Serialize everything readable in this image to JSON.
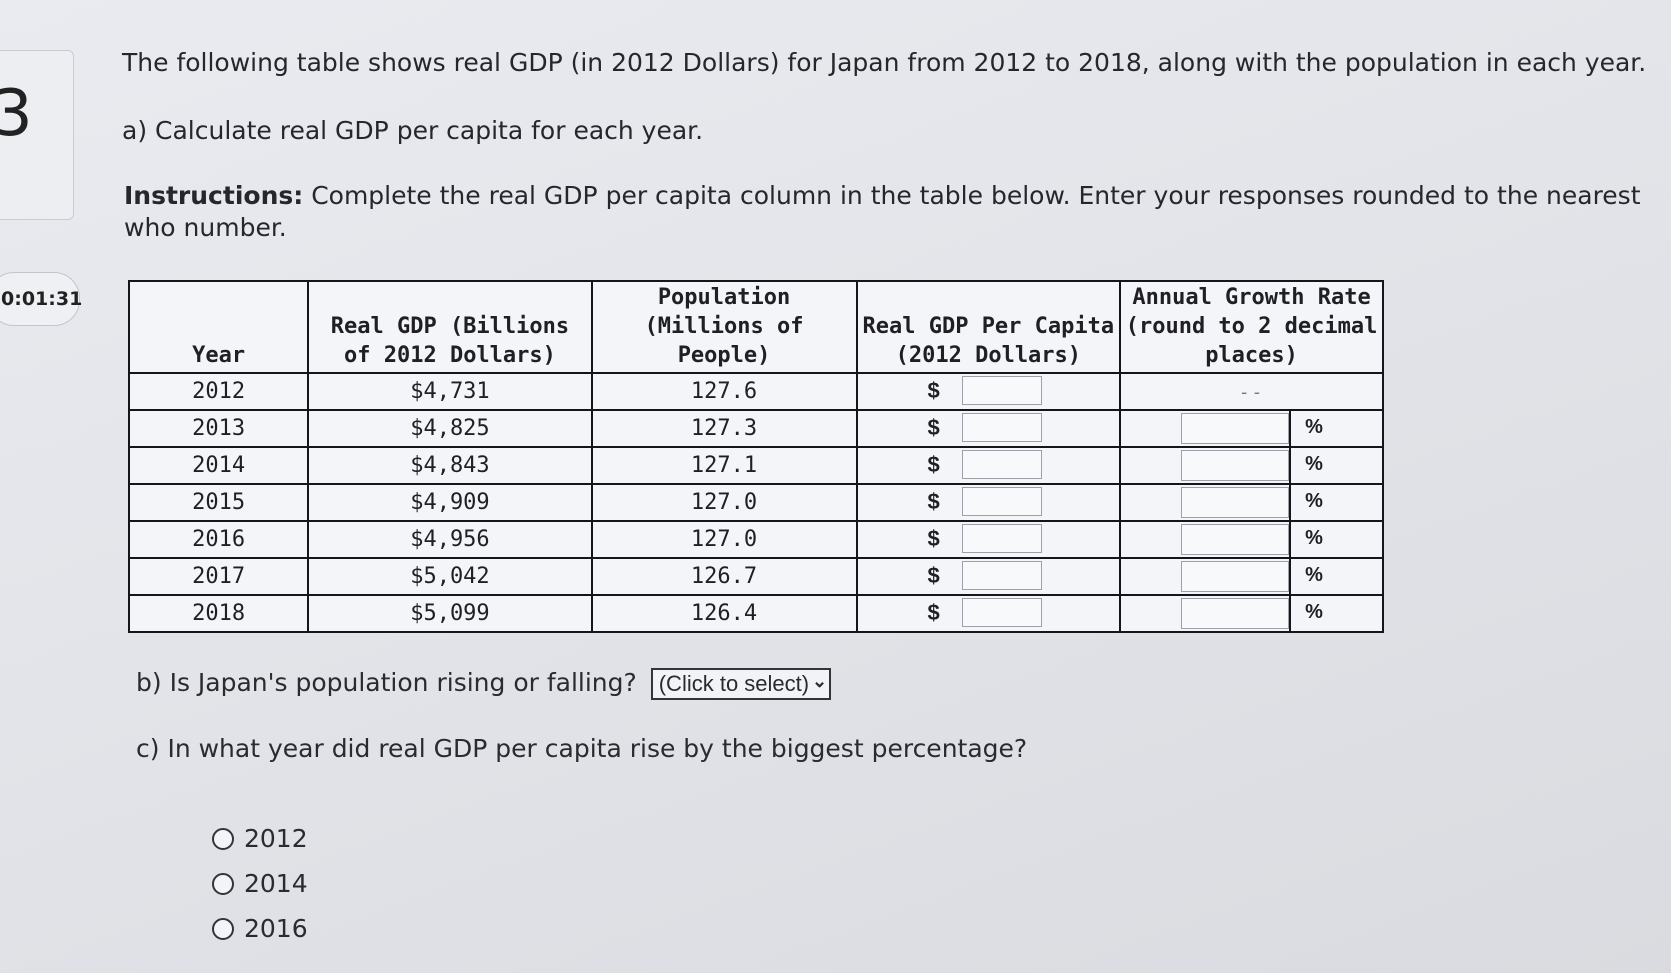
{
  "question_number": "3",
  "timer": "0:01:31",
  "prompt": "The following table shows real GDP (in 2012 Dollars) for Japan from 2012 to 2018, along with the population in each year.",
  "part_a": "a) Calculate real GDP per capita for each year.",
  "instructions_label": "Instructions:",
  "instructions_text": "Complete the real GDP per capita column in the table below. Enter your responses rounded to the nearest who number.",
  "table": {
    "headers": {
      "year": "Year",
      "gdp": "Real GDP (Billions of 2012 Dollars)",
      "pop": "Population (Millions of People)",
      "pc": "Real GDP Per Capita (2012 Dollars)",
      "growth": "Annual Growth Rate (round to 2 decimal places)"
    },
    "dollar_sign": "$",
    "percent_sign": "%",
    "first_growth_placeholder": "--",
    "rows": [
      {
        "year": "2012",
        "gdp": "$4,731",
        "pop": "127.6"
      },
      {
        "year": "2013",
        "gdp": "$4,825",
        "pop": "127.3"
      },
      {
        "year": "2014",
        "gdp": "$4,843",
        "pop": "127.1"
      },
      {
        "year": "2015",
        "gdp": "$4,909",
        "pop": "127.0"
      },
      {
        "year": "2016",
        "gdp": "$4,956",
        "pop": "127.0"
      },
      {
        "year": "2017",
        "gdp": "$5,042",
        "pop": "126.7"
      },
      {
        "year": "2018",
        "gdp": "$5,099",
        "pop": "126.4"
      }
    ]
  },
  "part_b": {
    "question": "b) Is Japan's population rising or falling?",
    "select_label": "(Click to select)"
  },
  "part_c": {
    "question": "c) In what year did real GDP per capita rise by the biggest percentage?",
    "options": [
      "2012",
      "2014",
      "2016"
    ]
  }
}
